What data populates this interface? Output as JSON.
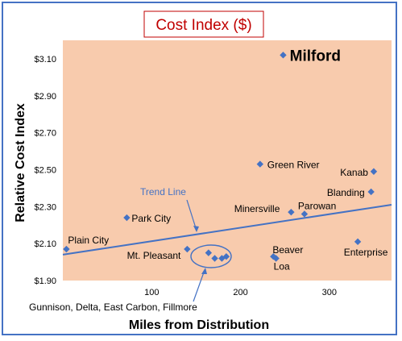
{
  "chart_data": {
    "type": "scatter",
    "title": "Cost Index ($)",
    "xlabel": "Miles from Distribution",
    "ylabel": "Relative Cost Index",
    "xlim": [
      0,
      370
    ],
    "ylim": [
      1.9,
      3.2
    ],
    "x_ticks": [
      100,
      200,
      300
    ],
    "x_tick_labels": [
      "100",
      "200",
      "300"
    ],
    "y_ticks": [
      1.9,
      2.1,
      2.3,
      2.5,
      2.7,
      2.9,
      3.1
    ],
    "y_tick_labels": [
      "$1.90",
      "$2.10",
      "$2.30",
      "$2.50",
      "$2.70",
      "$2.90",
      "$3.10"
    ],
    "grid": false,
    "colors": {
      "plot_area": "#f8cbad",
      "marker": "#4472c4",
      "trend": "#4472c4",
      "title": "#c00000",
      "border": "#4472c4"
    },
    "points": [
      {
        "x": 248,
        "y": 3.12
      },
      {
        "x": 222,
        "y": 2.53
      },
      {
        "x": 350,
        "y": 2.49
      },
      {
        "x": 347,
        "y": 2.38
      },
      {
        "x": 257,
        "y": 2.27
      },
      {
        "x": 272,
        "y": 2.26
      },
      {
        "x": 72,
        "y": 2.24
      },
      {
        "x": 4,
        "y": 2.07
      },
      {
        "x": 140,
        "y": 2.07
      },
      {
        "x": 332,
        "y": 2.11
      },
      {
        "x": 237,
        "y": 2.03
      },
      {
        "x": 240,
        "y": 2.02
      },
      {
        "x": 164,
        "y": 2.05
      },
      {
        "x": 171,
        "y": 2.02
      },
      {
        "x": 179,
        "y": 2.02
      },
      {
        "x": 184,
        "y": 2.03
      }
    ],
    "point_labels": [
      {
        "text": "Milford",
        "x": 250,
        "y": 3.12
      },
      {
        "text": "Green River",
        "x": 222,
        "y": 2.53
      },
      {
        "text": "Kanab",
        "x": 350,
        "y": 2.49
      },
      {
        "text": "Blanding",
        "x": 347,
        "y": 2.38
      },
      {
        "text": "Minersville",
        "x": 257,
        "y": 2.27
      },
      {
        "text": "Parowan",
        "x": 272,
        "y": 2.26
      },
      {
        "text": "Park City",
        "x": 72,
        "y": 2.24
      },
      {
        "text": "Plain City",
        "x": 4,
        "y": 2.07
      },
      {
        "text": "Mt. Pleasant",
        "x": 140,
        "y": 2.07
      },
      {
        "text": "Enterprise",
        "x": 332,
        "y": 2.11
      },
      {
        "text": "Beaver",
        "x": 237,
        "y": 2.03
      },
      {
        "text": "Loa",
        "x": 240,
        "y": 2.02
      }
    ],
    "trendline": {
      "label": "Trend Line",
      "x": [
        0,
        370
      ],
      "y": [
        2.04,
        2.31
      ]
    },
    "annotations": [
      {
        "text": "Trend Line",
        "x": 160,
        "y": 2.23
      },
      {
        "text": "Gunnison, Delta, East Carbon, Fillmore",
        "x": 175,
        "y": 2.03
      }
    ]
  }
}
